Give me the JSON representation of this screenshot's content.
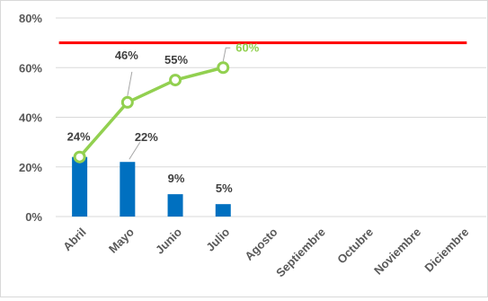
{
  "chart_data": {
    "type": "bar+line",
    "categories": [
      "Abril",
      "Mayo",
      "Junio",
      "Julio",
      "Agosto",
      "Septiembre",
      "Octubre",
      "Noviembre",
      "Diciembre"
    ],
    "y_ticks": [
      "0%",
      "20%",
      "40%",
      "60%",
      "80%"
    ],
    "ylim": [
      0,
      80
    ],
    "grid": true,
    "legend": "none",
    "series": [
      {
        "type": "bar",
        "values": [
          24,
          22,
          9,
          5,
          null,
          null,
          null,
          null,
          null
        ],
        "labels": [
          "24%",
          "22%",
          "9%",
          "5%",
          "",
          "",
          "",
          "",
          ""
        ],
        "color": "#0070c0"
      },
      {
        "type": "line",
        "values": [
          24,
          46,
          55,
          60,
          null,
          null,
          null,
          null,
          null
        ],
        "labels": [
          "",
          "46%",
          "55%",
          "60%",
          "",
          "",
          "",
          "",
          ""
        ],
        "color": "#92d050"
      },
      {
        "type": "target-line",
        "value": 70,
        "color": "#ff0000"
      }
    ],
    "label_colors": {
      "default": "#404040",
      "highlight": "#92d050"
    }
  }
}
